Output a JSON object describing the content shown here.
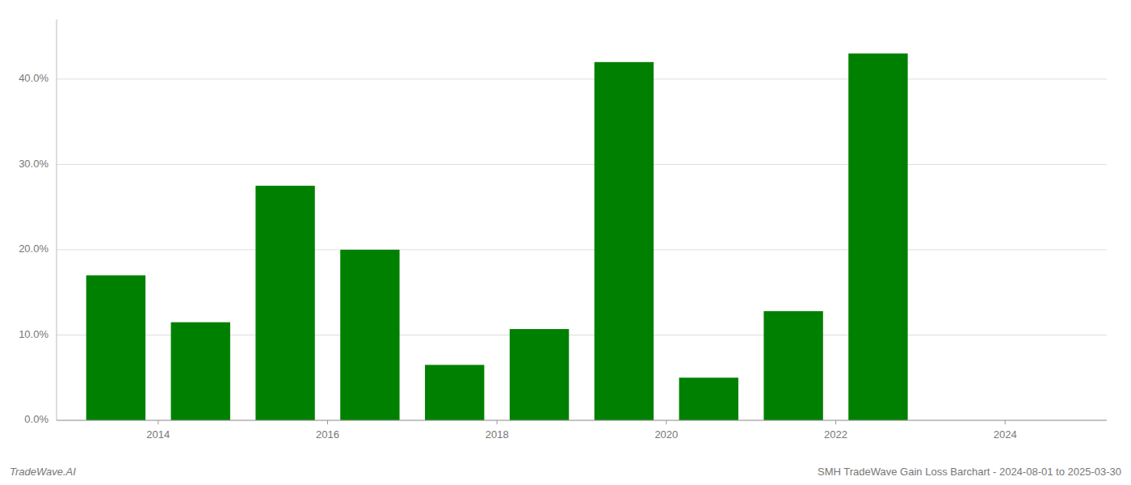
{
  "chart_data": {
    "type": "bar",
    "title": "SMH TradeWave Gain Loss Barchart - 2024-08-01 to 2025-03-30",
    "annotations": [
      "TradeWave.AI"
    ],
    "x": [
      2013.5,
      2014.5,
      2015.5,
      2016.5,
      2017.5,
      2018.5,
      2019.5,
      2020.5,
      2021.5,
      2022.5
    ],
    "values": [
      0.17,
      0.115,
      0.275,
      0.2,
      0.065,
      0.107,
      0.42,
      0.05,
      0.128,
      0.43
    ],
    "color": "#008000",
    "xlim": [
      2012.8,
      2025.2
    ],
    "xticks": [
      2014,
      2016,
      2018,
      2020,
      2022,
      2024
    ],
    "ylim": [
      0,
      0.47
    ],
    "yticks": [
      {
        "value": 0.0,
        "label": "0.0%"
      },
      {
        "value": 0.1,
        "label": "10.0%"
      },
      {
        "value": 0.2,
        "label": "20.0%"
      },
      {
        "value": 0.3,
        "label": "30.0%"
      },
      {
        "value": 0.4,
        "label": "40.0%"
      }
    ],
    "grid": true
  }
}
